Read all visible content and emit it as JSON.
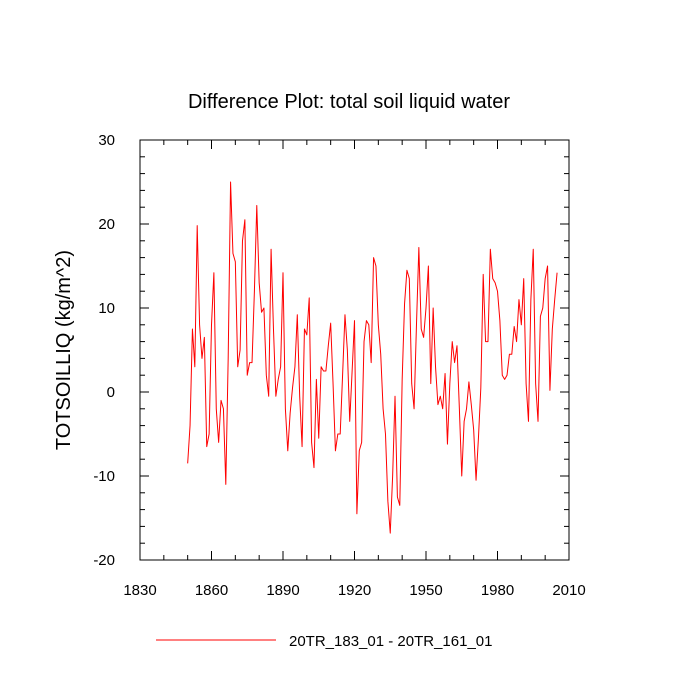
{
  "chart_data": {
    "type": "line",
    "title": "Difference Plot: total soil liquid water",
    "xlabel": "",
    "ylabel": "TOTSOILLIQ  (kg/m^2)",
    "xlim": [
      1830,
      2010
    ],
    "ylim": [
      -20,
      30
    ],
    "xticks": [
      1830,
      1860,
      1890,
      1920,
      1950,
      1980,
      2010
    ],
    "yticks": [
      -20,
      -10,
      0,
      10,
      20,
      30
    ],
    "xtick_labels": [
      "1830",
      "1860",
      "1890",
      "1920",
      "1950",
      "1980",
      "2010"
    ],
    "ytick_labels": [
      "-20",
      "-10",
      "0",
      "10",
      "20",
      "30"
    ],
    "legend_position": "bottom",
    "series": [
      {
        "name": "20TR_183_01 - 20TR_161_01",
        "color": "#ff0000",
        "x": [
          1850,
          1851,
          1852,
          1853,
          1854,
          1855,
          1856,
          1857,
          1858,
          1859,
          1860,
          1861,
          1862,
          1863,
          1864,
          1865,
          1866,
          1867,
          1868,
          1869,
          1870,
          1871,
          1872,
          1873,
          1874,
          1875,
          1876,
          1877,
          1878,
          1879,
          1880,
          1881,
          1882,
          1883,
          1884,
          1885,
          1886,
          1887,
          1888,
          1889,
          1890,
          1891,
          1892,
          1893,
          1894,
          1895,
          1896,
          1897,
          1898,
          1899,
          1900,
          1901,
          1902,
          1903,
          1904,
          1905,
          1906,
          1907,
          1908,
          1909,
          1910,
          1911,
          1912,
          1913,
          1914,
          1915,
          1916,
          1917,
          1918,
          1919,
          1920,
          1921,
          1922,
          1923,
          1924,
          1925,
          1926,
          1927,
          1928,
          1929,
          1930,
          1931,
          1932,
          1933,
          1934,
          1935,
          1936,
          1937,
          1938,
          1939,
          1940,
          1941,
          1942,
          1943,
          1944,
          1945,
          1946,
          1947,
          1948,
          1949,
          1950,
          1951,
          1952,
          1953,
          1954,
          1955,
          1956,
          1957,
          1958,
          1959,
          1960,
          1961,
          1962,
          1963,
          1964,
          1965,
          1966,
          1967,
          1968,
          1969,
          1970,
          1971,
          1972,
          1973,
          1974,
          1975,
          1976,
          1977,
          1978,
          1979,
          1980,
          1981,
          1982,
          1983,
          1984,
          1985,
          1986,
          1987,
          1988,
          1989,
          1990,
          1991,
          1992,
          1993,
          1994,
          1995,
          1996,
          1997,
          1998,
          1999,
          2000,
          2001,
          2002,
          2003,
          2004,
          2005
        ],
        "values": [
          -8.5,
          -4.0,
          7.5,
          3.0,
          19.8,
          8.0,
          4.0,
          6.5,
          -6.5,
          -5.0,
          8.0,
          14.2,
          -2.0,
          -6.0,
          -1.0,
          -2.0,
          -11.0,
          4.0,
          25.0,
          16.5,
          15.5,
          3.0,
          5.0,
          18.0,
          20.5,
          2.0,
          3.5,
          3.5,
          12.0,
          22.2,
          13.0,
          9.5,
          10.0,
          2.0,
          -0.5,
          17.0,
          7.5,
          -0.5,
          1.5,
          3.0,
          14.2,
          -2.0,
          -7.0,
          -2.5,
          0.5,
          3.0,
          9.2,
          -0.5,
          -6.5,
          7.5,
          6.8,
          11.2,
          -6.0,
          -9.0,
          1.5,
          -5.5,
          3.0,
          2.5,
          2.5,
          5.5,
          8.2,
          1.0,
          -7.0,
          -5.0,
          -5.0,
          2.0,
          9.2,
          5.0,
          -3.5,
          2.5,
          8.5,
          -14.5,
          -7.0,
          -6.0,
          6.0,
          8.5,
          8.0,
          3.5,
          16.0,
          15.0,
          8.0,
          4.5,
          -2.0,
          -5.0,
          -13.0,
          -16.8,
          -10.0,
          -0.5,
          -12.5,
          -13.5,
          1.5,
          10.5,
          14.5,
          13.5,
          1.0,
          -2.0,
          8.0,
          17.2,
          7.5,
          6.5,
          10.0,
          15.0,
          1.0,
          10.0,
          3.0,
          -1.5,
          -0.5,
          -2.0,
          2.2,
          -6.2,
          1.0,
          6.0,
          3.5,
          5.5,
          -2.0,
          -10.0,
          -3.5,
          -2.0,
          1.2,
          -1.5,
          -4.5,
          -10.5,
          -5.5,
          0.5,
          14.0,
          6.0,
          6.0,
          17.0,
          13.5,
          13.0,
          12.0,
          8.5,
          2.0,
          1.5,
          2.0,
          4.5,
          4.5,
          7.8,
          6.0,
          11.0,
          8.0,
          13.5,
          1.0,
          -3.5,
          11.0,
          17.0,
          1.0,
          -3.5,
          9.0,
          10.0,
          13.5,
          15.0,
          0.2,
          7.5,
          11.0,
          14.2
        ]
      }
    ]
  }
}
